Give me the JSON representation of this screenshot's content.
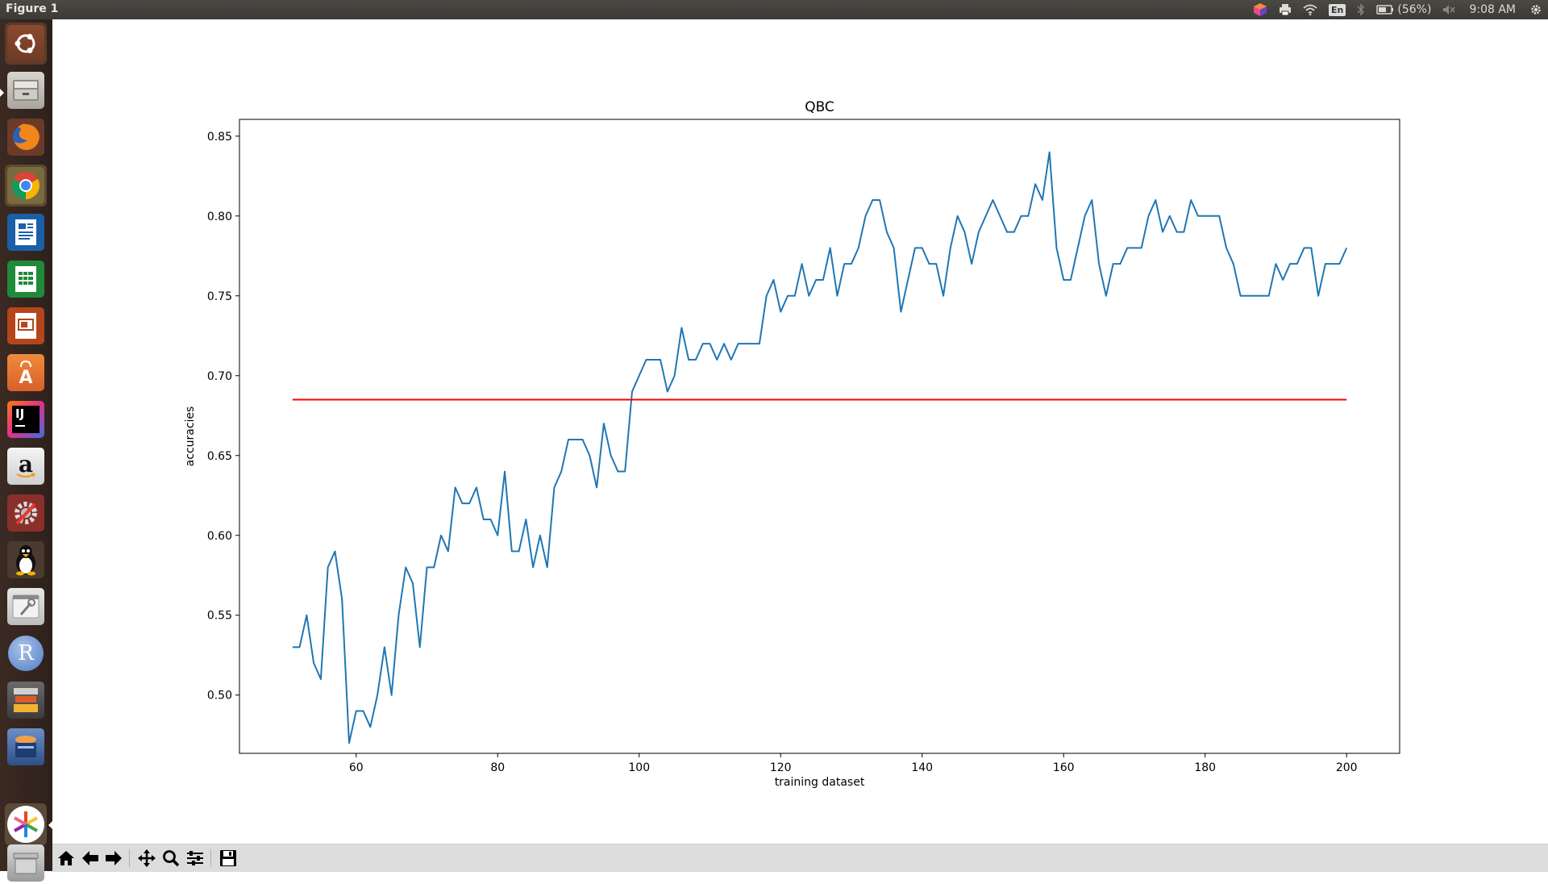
{
  "window": {
    "title": "Figure 1"
  },
  "tray": {
    "keyboard_layout": "En",
    "battery_text": "(56%)",
    "clock": "9:08 AM"
  },
  "launcher": {
    "items": [
      {
        "icon": "ubuntu-dash-icon"
      },
      {
        "icon": "files-icon"
      },
      {
        "icon": "firefox-icon"
      },
      {
        "icon": "chrome-icon"
      },
      {
        "icon": "writer-icon"
      },
      {
        "icon": "calc-icon"
      },
      {
        "icon": "impress-icon"
      },
      {
        "icon": "software-center-icon"
      },
      {
        "icon": "intellij-icon"
      },
      {
        "icon": "amazon-icon"
      },
      {
        "icon": "system-settings-icon"
      },
      {
        "icon": "penguin-icon"
      },
      {
        "icon": "system-tools-icon"
      },
      {
        "icon": "r-icon"
      },
      {
        "icon": "stacked-apps-icon"
      },
      {
        "icon": "media-icon"
      },
      {
        "icon": "pinwheel-icon"
      },
      {
        "icon": "trash-icon"
      }
    ],
    "intellij_text": "IJ",
    "amazon_text": "a",
    "r_text": "R"
  },
  "toolbar": {
    "buttons": [
      "home-icon",
      "back-icon",
      "forward-icon",
      "pan-icon",
      "zoom-icon",
      "configure-icon",
      "save-icon"
    ]
  },
  "chart_data": {
    "type": "line",
    "title": "QBC",
    "xlabel": "training dataset",
    "ylabel": "accuracies",
    "xlim": [
      43.5,
      207.5
    ],
    "ylim": [
      0.4635,
      0.8605
    ],
    "xticks": [
      60,
      80,
      100,
      120,
      140,
      160,
      180,
      200
    ],
    "yticks": [
      0.5,
      0.55,
      0.6,
      0.65,
      0.7,
      0.75,
      0.8,
      0.85
    ],
    "grid": false,
    "series": [
      {
        "color": "#1f77b4",
        "x_start": 51,
        "x_step": 1,
        "values": [
          0.53,
          0.53,
          0.55,
          0.52,
          0.51,
          0.58,
          0.59,
          0.56,
          0.47,
          0.49,
          0.49,
          0.48,
          0.5,
          0.53,
          0.5,
          0.55,
          0.58,
          0.57,
          0.53,
          0.58,
          0.58,
          0.6,
          0.59,
          0.63,
          0.62,
          0.62,
          0.63,
          0.61,
          0.61,
          0.6,
          0.64,
          0.59,
          0.59,
          0.61,
          0.58,
          0.6,
          0.58,
          0.63,
          0.64,
          0.66,
          0.66,
          0.66,
          0.65,
          0.63,
          0.67,
          0.65,
          0.64,
          0.64,
          0.69,
          0.7,
          0.71,
          0.71,
          0.71,
          0.69,
          0.7,
          0.73,
          0.71,
          0.71,
          0.72,
          0.72,
          0.71,
          0.72,
          0.71,
          0.72,
          0.72,
          0.72,
          0.72,
          0.75,
          0.76,
          0.74,
          0.75,
          0.75,
          0.77,
          0.75,
          0.76,
          0.76,
          0.78,
          0.75,
          0.77,
          0.77,
          0.78,
          0.8,
          0.81,
          0.81,
          0.79,
          0.78,
          0.74,
          0.76,
          0.78,
          0.78,
          0.77,
          0.77,
          0.75,
          0.78,
          0.8,
          0.79,
          0.77,
          0.79,
          0.8,
          0.81,
          0.8,
          0.79,
          0.79,
          0.8,
          0.8,
          0.82,
          0.81,
          0.84,
          0.78,
          0.76,
          0.76,
          0.78,
          0.8,
          0.81,
          0.77,
          0.75,
          0.77,
          0.77,
          0.78,
          0.78,
          0.78,
          0.8,
          0.81,
          0.79,
          0.8,
          0.79,
          0.79,
          0.81,
          0.8,
          0.8,
          0.8,
          0.8,
          0.78,
          0.77,
          0.75,
          0.75,
          0.75,
          0.75,
          0.75,
          0.77,
          0.76,
          0.77,
          0.77,
          0.78,
          0.78,
          0.75,
          0.77,
          0.77,
          0.77,
          0.78
        ]
      },
      {
        "color": "#ff0000",
        "x": [
          51,
          200
        ],
        "values": [
          0.685,
          0.685
        ]
      }
    ]
  }
}
